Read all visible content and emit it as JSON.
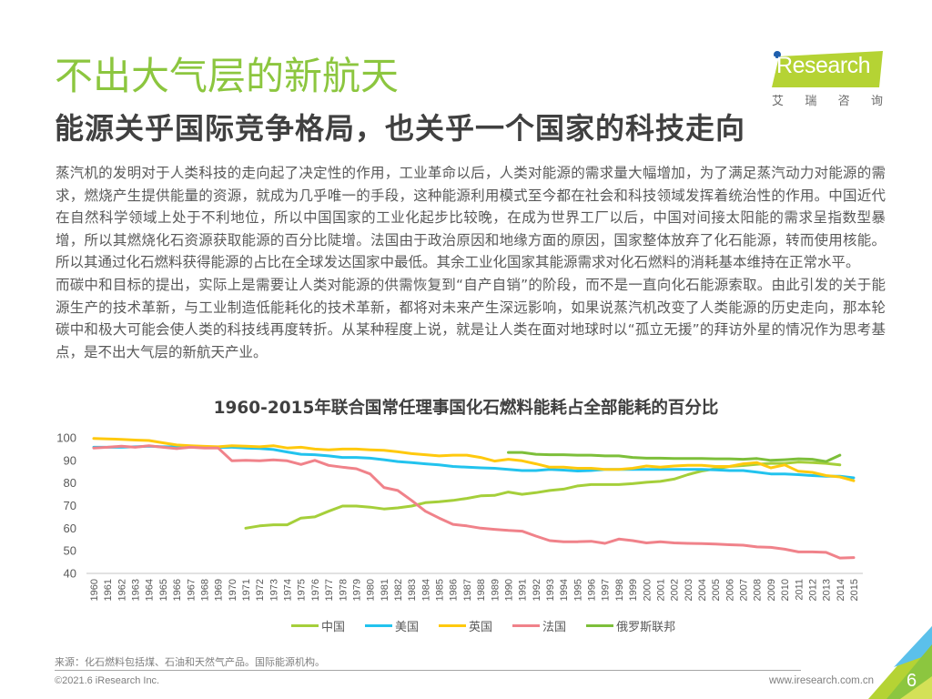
{
  "header": {
    "title": "不出大气层的新航天",
    "subtitle": "能源关乎国际竞争格局，也关乎一个国家的科技走向",
    "logo_text": "iResearch",
    "logo_cn": [
      "艾",
      "瑞",
      "咨",
      "询"
    ]
  },
  "body": {
    "paragraphs": [
      "蒸汽机的发明对于人类科技的走向起了决定性的作用，工业革命以后，人类对能源的需求量大幅增加，为了满足蒸汽动力对能源的需求，燃烧产生提供能量的资源，就成为几乎唯一的手段，这种能源利用模式至今都在社会和科技领域发挥着统治性的作用。中国近代在自然科学领域上处于不利地位，所以中国国家的工业化起步比较晚，在成为世界工厂以后，中国对间接太阳能的需求呈指数型暴增，所以其燃烧化石资源获取能源的百分比陡增。法国由于政治原因和地缘方面的原因，国家整体放弃了化石能源，转而使用核能。所以其通过化石燃料获得能源的占比在全球发达国家中最低。其余工业化国家其能源需求对化石燃料的消耗基本维持在正常水平。",
      "而碳中和目标的提出，实际上是需要让人类对能源的供需恢复到“自产自销”的阶段，而不是一直向化石能源索取。由此引发的关于能源生产的技术革新，与工业制造低能耗化的技术革新，都将对未来产生深远影响，如果说蒸汽机改变了人类能源的历史走向，那本轮碳中和极大可能会使人类的科技线再度转折。从某种程度上说，就是让人类在面对地球时以“孤立无援”的拜访外星的情况作为思考基点，是不出大气层的新航天产业。"
    ]
  },
  "footer": {
    "source": "来源：化石燃料包括煤、石油和天然气产品。国际能源机构。",
    "copyright": "©2021.6 iResearch Inc.",
    "website": "www.iresearch.com.cn",
    "page_number": "6"
  },
  "colors": {
    "title_green": "#8cc63f",
    "china": "#a5cf3a",
    "usa": "#22c3ee",
    "uk": "#ffc90e",
    "france": "#f0828a",
    "russia": "#7dbf3a"
  },
  "chart_data": {
    "type": "line",
    "title": "1960-2015年联合国常任理事国化石燃料能耗占全部能耗的百分比",
    "xlabel": "",
    "ylabel": "",
    "ylim": [
      40,
      100
    ],
    "yticks": [
      100,
      90,
      80,
      70,
      60,
      50,
      40
    ],
    "grid": false,
    "legend_position": "bottom",
    "x": [
      1960,
      1961,
      1962,
      1963,
      1964,
      1965,
      1966,
      1967,
      1968,
      1969,
      1970,
      1971,
      1972,
      1973,
      1974,
      1975,
      1976,
      1977,
      1978,
      1979,
      1980,
      1981,
      1982,
      1983,
      1984,
      1985,
      1986,
      1987,
      1988,
      1989,
      1990,
      1991,
      1992,
      1993,
      1994,
      1995,
      1996,
      1997,
      1998,
      1999,
      2000,
      2001,
      2002,
      2003,
      2004,
      2005,
      2006,
      2007,
      2008,
      2009,
      2010,
      2011,
      2012,
      2013,
      2014,
      2015
    ],
    "series": [
      {
        "name": "中国",
        "color": "#a5cf3a",
        "values": [
          null,
          null,
          null,
          null,
          null,
          null,
          null,
          null,
          null,
          null,
          null,
          60.0,
          61.0,
          61.5,
          61.5,
          64.5,
          65.0,
          67.5,
          69.8,
          69.8,
          69.3,
          68.5,
          69.0,
          69.8,
          71.3,
          71.7,
          72.3,
          73.2,
          74.3,
          74.5,
          76.0,
          75.0,
          75.7,
          76.7,
          77.3,
          78.7,
          79.3,
          79.3,
          79.3,
          79.7,
          80.3,
          80.7,
          81.7,
          83.7,
          85.3,
          86.3,
          87.3,
          87.7,
          88.3,
          88.7,
          88.7,
          89.3,
          89.0,
          88.7,
          88.0,
          null
        ]
      },
      {
        "name": "美国",
        "color": "#22c3ee",
        "values": [
          95.8,
          95.8,
          95.8,
          96.0,
          96.3,
          96.0,
          96.0,
          96.0,
          95.7,
          95.7,
          95.8,
          95.5,
          95.3,
          94.8,
          93.7,
          92.7,
          92.5,
          92.0,
          91.3,
          91.3,
          91.0,
          90.3,
          89.5,
          89.0,
          88.5,
          88.0,
          87.3,
          87.0,
          86.7,
          86.5,
          86.0,
          85.5,
          85.5,
          86.0,
          85.7,
          85.3,
          85.5,
          86.0,
          86.0,
          86.0,
          86.0,
          86.0,
          86.0,
          86.0,
          86.0,
          85.8,
          85.5,
          85.5,
          84.8,
          84.0,
          84.0,
          83.7,
          83.3,
          83.0,
          83.0,
          82.3
        ]
      },
      {
        "name": "英国",
        "color": "#ffc90e",
        "values": [
          99.7,
          99.5,
          99.3,
          99.0,
          98.8,
          97.8,
          96.8,
          96.5,
          96.2,
          96.0,
          96.5,
          96.3,
          96.0,
          96.5,
          95.5,
          95.8,
          95.0,
          94.7,
          95.0,
          95.0,
          94.7,
          94.5,
          93.8,
          93.0,
          92.5,
          92.0,
          92.3,
          92.3,
          91.3,
          89.7,
          90.5,
          89.8,
          88.5,
          87.0,
          87.0,
          86.5,
          86.5,
          86.0,
          86.0,
          86.5,
          87.5,
          87.0,
          87.5,
          87.8,
          87.8,
          87.3,
          87.3,
          88.5,
          89.0,
          86.7,
          88.0,
          85.2,
          84.7,
          83.3,
          82.7,
          81.0
        ]
      },
      {
        "name": "法国",
        "color": "#f0828a",
        "values": [
          95.5,
          95.8,
          96.3,
          95.8,
          96.5,
          95.8,
          95.2,
          95.8,
          95.5,
          95.5,
          89.8,
          90.0,
          89.8,
          90.2,
          89.8,
          88.2,
          90.0,
          87.8,
          87.0,
          86.3,
          84.0,
          78.0,
          76.7,
          72.3,
          67.5,
          64.5,
          61.7,
          61.0,
          60.0,
          59.5,
          59.0,
          58.7,
          56.5,
          54.5,
          54.0,
          54.0,
          54.2,
          53.3,
          55.2,
          54.5,
          53.5,
          54.0,
          53.5,
          53.3,
          53.2,
          53.0,
          52.7,
          52.5,
          51.7,
          51.5,
          50.7,
          49.5,
          49.5,
          49.3,
          46.8,
          47.0
        ]
      },
      {
        "name": "俄罗斯联邦",
        "color": "#7dbf3a",
        "values": [
          null,
          null,
          null,
          null,
          null,
          null,
          null,
          null,
          null,
          null,
          null,
          null,
          null,
          null,
          null,
          null,
          null,
          null,
          null,
          null,
          null,
          null,
          null,
          null,
          null,
          null,
          null,
          null,
          null,
          null,
          93.5,
          93.5,
          92.7,
          92.5,
          92.5,
          92.3,
          92.3,
          92.0,
          92.0,
          91.3,
          91.0,
          91.0,
          90.8,
          90.8,
          90.8,
          90.7,
          90.7,
          90.5,
          90.8,
          90.0,
          90.3,
          90.7,
          90.5,
          89.5,
          92.3,
          null
        ]
      }
    ]
  }
}
